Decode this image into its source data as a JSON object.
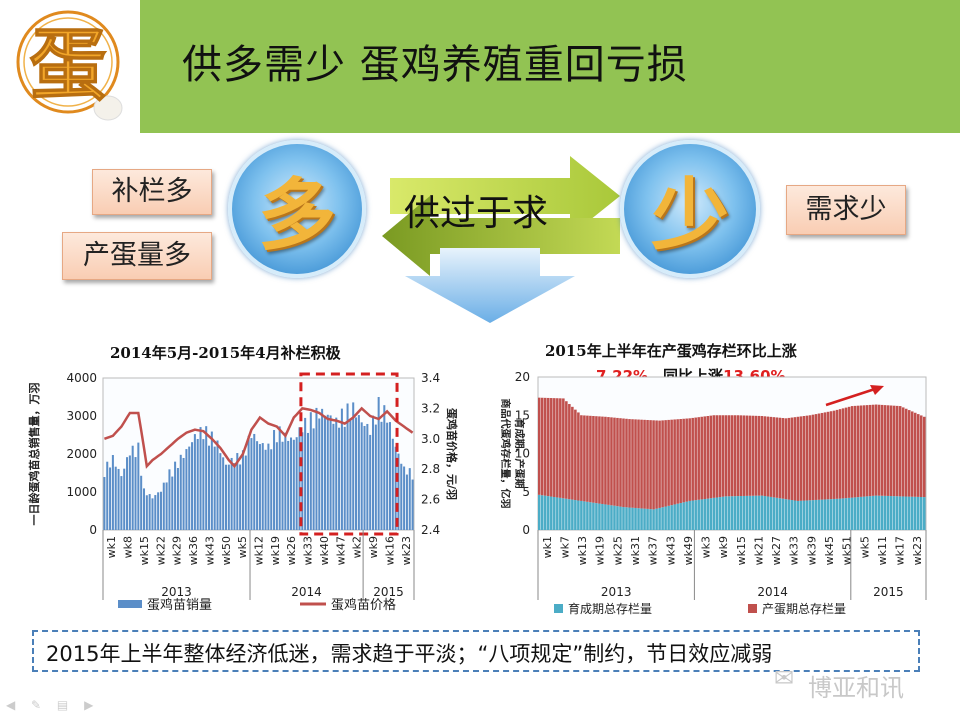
{
  "header": {
    "title": "供多需少  蛋鸡养殖重回亏损",
    "logo_char": "蛋",
    "logo_name": "egg-logo"
  },
  "accent": "#92c353",
  "left_tags": [
    "补栏多",
    "产蛋量多"
  ],
  "right_tags": [
    "需求少"
  ],
  "bubbles": {
    "left": "多",
    "right": "少"
  },
  "flow_text": "供过于求",
  "chart_data": [
    {
      "type": "bar+line",
      "title": "2014年5月-2015年4月补栏积极",
      "ylabel": "一日龄蛋鸡苗总销售量，万羽",
      "y2label": "蛋鸡苗价格，元/羽",
      "ylim": [
        0,
        4000
      ],
      "y2lim": [
        2.4,
        3.4
      ],
      "yticks": [
        "0",
        "1000",
        "2000",
        "3000",
        "4000"
      ],
      "y2ticks": [
        "2.4",
        "2.6",
        "2.8",
        "3.0",
        "3.2",
        "3.4"
      ],
      "xticks": [
        "wk1",
        "wk8",
        "wk15",
        "wk22",
        "wk29",
        "wk36",
        "wk43",
        "wk50",
        "wk5",
        "wk12",
        "wk19",
        "wk26",
        "wk33",
        "wk40",
        "wk47",
        "wk2",
        "wk9",
        "wk16",
        "wk23"
      ],
      "year_labels": [
        "2013",
        "2014",
        "2015"
      ],
      "legend": [
        "蛋鸡苗销量",
        "蛋鸡苗价格"
      ],
      "colors": {
        "bar": "#5b8ec8",
        "line": "#c0504d",
        "highlight": "#d42020"
      },
      "bar_anchors": [
        [
          0,
          1700
        ],
        [
          3,
          2000
        ],
        [
          6,
          1500
        ],
        [
          9,
          2200
        ],
        [
          12,
          2300
        ],
        [
          14,
          1100
        ],
        [
          17,
          900
        ],
        [
          20,
          1100
        ],
        [
          23,
          1600
        ],
        [
          26,
          1900
        ],
        [
          29,
          2200
        ],
        [
          32,
          2600
        ],
        [
          35,
          2800
        ],
        [
          38,
          2600
        ],
        [
          40,
          2400
        ],
        [
          43,
          1800
        ],
        [
          46,
          2000
        ],
        [
          49,
          2100
        ],
        [
          52,
          2700
        ],
        [
          55,
          2400
        ],
        [
          58,
          2300
        ],
        [
          61,
          2800
        ],
        [
          64,
          2600
        ],
        [
          67,
          2500
        ],
        [
          70,
          2900
        ],
        [
          73,
          3100
        ],
        [
          76,
          3300
        ],
        [
          79,
          3200
        ],
        [
          82,
          3000
        ],
        [
          85,
          3300
        ],
        [
          88,
          3400
        ],
        [
          91,
          3000
        ],
        [
          94,
          2800
        ],
        [
          97,
          3500
        ],
        [
          100,
          3200
        ],
        [
          103,
          2300
        ],
        [
          106,
          1700
        ],
        [
          109,
          1600
        ]
      ],
      "line_anchors": [
        [
          0,
          3.0
        ],
        [
          3,
          3.02
        ],
        [
          6,
          3.08
        ],
        [
          9,
          3.17
        ],
        [
          12,
          3.17
        ],
        [
          14,
          2.94
        ],
        [
          15,
          2.82
        ],
        [
          17,
          2.86
        ],
        [
          20,
          2.9
        ],
        [
          23,
          2.95
        ],
        [
          26,
          3.0
        ],
        [
          29,
          3.04
        ],
        [
          32,
          3.06
        ],
        [
          35,
          3.05
        ],
        [
          38,
          3.0
        ],
        [
          41,
          2.94
        ],
        [
          44,
          2.86
        ],
        [
          46,
          2.82
        ],
        [
          49,
          2.9
        ],
        [
          52,
          3.06
        ],
        [
          55,
          3.14
        ],
        [
          58,
          3.1
        ],
        [
          61,
          3.08
        ],
        [
          64,
          3.02
        ],
        [
          67,
          3.14
        ],
        [
          70,
          3.2
        ],
        [
          73,
          3.19
        ],
        [
          76,
          3.17
        ],
        [
          79,
          3.13
        ],
        [
          82,
          3.12
        ],
        [
          85,
          3.1
        ],
        [
          88,
          3.14
        ],
        [
          91,
          3.2
        ],
        [
          94,
          3.15
        ],
        [
          97,
          3.13
        ],
        [
          100,
          3.18
        ],
        [
          103,
          3.12
        ],
        [
          106,
          3.08
        ],
        [
          109,
          3.04
        ]
      ]
    },
    {
      "type": "stacked_bar",
      "title": "2015年上半年在产蛋鸡存栏环比上涨",
      "subtitle_parts": [
        "7.22%",
        "，同比上涨",
        "13.60%"
      ],
      "ylabel": "商品代蛋鸡存栏量，亿羽",
      "y2label": "育成期、产蛋期",
      "ylim": [
        0,
        20
      ],
      "yticks": [
        "0",
        "5",
        "10",
        "15",
        "20"
      ],
      "xticks": [
        "wk1",
        "wk7",
        "wk13",
        "wk19",
        "wk25",
        "wk31",
        "wk37",
        "wk43",
        "wk49",
        "wk3",
        "wk9",
        "wk15",
        "wk21",
        "wk27",
        "wk33",
        "wk39",
        "wk45",
        "wk51",
        "wk5",
        "wk11",
        "wk17",
        "wk23"
      ],
      "year_labels": [
        "2013",
        "2014",
        "2015"
      ],
      "legend": [
        "育成期总存栏量",
        "产蛋期总存栏量"
      ],
      "colors": {
        "bottom": "#4bacc6",
        "top": "#c0504d",
        "arrow": "#d42020"
      },
      "total_anchors": [
        [
          0,
          17.3
        ],
        [
          8,
          17.2
        ],
        [
          14,
          15.0
        ],
        [
          22,
          14.8
        ],
        [
          30,
          14.5
        ],
        [
          40,
          14.3
        ],
        [
          50,
          14.6
        ],
        [
          58,
          15.0
        ],
        [
          66,
          15.0
        ],
        [
          74,
          14.9
        ],
        [
          82,
          14.6
        ],
        [
          90,
          15.0
        ],
        [
          98,
          15.6
        ],
        [
          104,
          16.2
        ],
        [
          112,
          16.4
        ],
        [
          120,
          16.2
        ],
        [
          128,
          14.8
        ]
      ],
      "bottom_anchors": [
        [
          0,
          4.6
        ],
        [
          14,
          3.8
        ],
        [
          28,
          3.0
        ],
        [
          38,
          2.7
        ],
        [
          50,
          3.8
        ],
        [
          62,
          4.4
        ],
        [
          74,
          4.5
        ],
        [
          86,
          3.8
        ],
        [
          100,
          4.1
        ],
        [
          112,
          4.5
        ],
        [
          128,
          4.3
        ]
      ]
    }
  ],
  "footer": "2015年上半年整体经济低迷，需求趋于平淡；“八项规定”制约，节日效应减弱",
  "watermark": "博亚和讯"
}
